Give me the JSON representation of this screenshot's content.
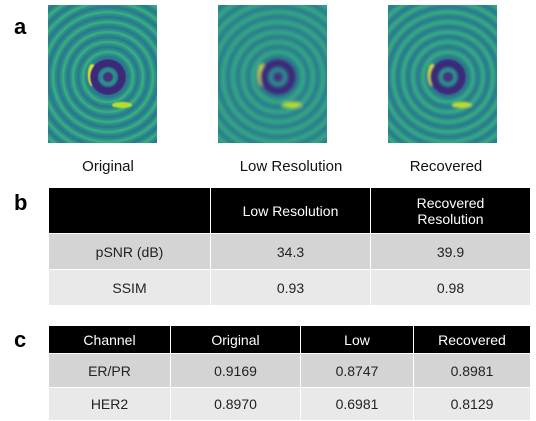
{
  "panels": {
    "a": "a",
    "b": "b",
    "c": "c"
  },
  "images": {
    "captions": [
      "Original",
      "Low Resolution",
      "Recovered"
    ]
  },
  "table_b": {
    "header": [
      "",
      "Low Resolution",
      "Recovered Resolution"
    ],
    "rows": [
      [
        "pSNR (dB)",
        "34.3",
        "39.9"
      ],
      [
        "SSIM",
        "0.93",
        "0.98"
      ]
    ]
  },
  "table_c": {
    "header": [
      "Channel",
      "Original",
      "Low",
      "Recovered"
    ],
    "rows": [
      [
        "ER/PR",
        "0.9169",
        "0.8747",
        "0.8981"
      ],
      [
        "HER2",
        "0.8970",
        "0.6981",
        "0.8129"
      ]
    ]
  }
}
